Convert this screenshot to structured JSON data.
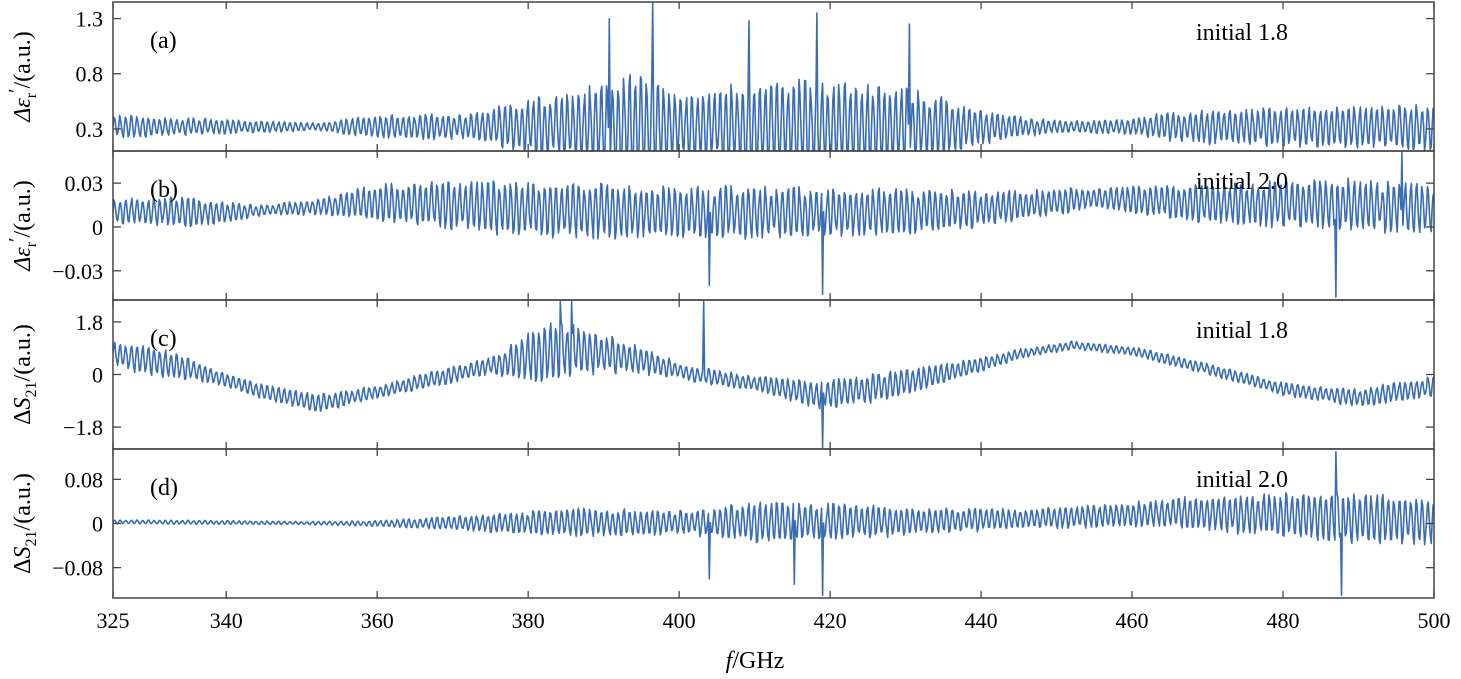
{
  "chart_data": [
    {
      "id": "a",
      "type": "line",
      "panel_label": "(a)",
      "annotation": "initial 1.8",
      "ylabel_prefix": "Δε",
      "ylabel_sub": "r",
      "ylabel_prime": "′",
      "ylabel_unit": "/(a.u.)",
      "ylim": [
        0.1,
        1.45
      ],
      "yticks": [
        0.3,
        0.8,
        1.3
      ],
      "ytick_labels": [
        "0.3",
        "0.8",
        "1.3"
      ],
      "color": "#3a6db3",
      "envelope": {
        "base": 0.32,
        "amp_x": [
          325,
          345,
          352,
          358,
          366,
          372,
          380,
          386,
          390,
          395,
          400,
          405,
          410,
          415,
          420,
          425,
          430,
          435,
          440,
          445,
          452,
          460,
          465,
          470,
          480,
          490,
          500
        ],
        "amp_y": [
          0.12,
          0.06,
          0.04,
          0.1,
          0.14,
          0.12,
          0.3,
          0.35,
          0.48,
          0.55,
          0.32,
          0.4,
          0.45,
          0.48,
          0.45,
          0.48,
          0.4,
          0.3,
          0.18,
          0.1,
          0.06,
          0.08,
          0.15,
          0.18,
          0.2,
          0.22,
          0.25
        ]
      },
      "spikes": [
        {
          "x": 396.5,
          "y": 1.45
        },
        {
          "x": 390.8,
          "y": 1.3
        },
        {
          "x": 418.2,
          "y": 1.35
        },
        {
          "x": 409.3,
          "y": 1.28
        },
        {
          "x": 430.5,
          "y": 1.25
        }
      ]
    },
    {
      "id": "b",
      "type": "line",
      "panel_label": "(b)",
      "annotation": "initial 2.0",
      "ylabel_prefix": "Δε",
      "ylabel_sub": "r",
      "ylabel_prime": "′",
      "ylabel_unit": "/(a.u.)",
      "ylim": [
        -0.05,
        0.052
      ],
      "yticks": [
        -0.03,
        0,
        0.03
      ],
      "ytick_labels": [
        "−0.03",
        "0",
        "0.03"
      ],
      "color": "#3a6db3",
      "envelope": {
        "base_x": [
          325,
          340,
          350,
          360,
          380,
          400,
          420,
          440,
          455,
          470,
          490,
          500
        ],
        "base_y": [
          0.011,
          0.01,
          0.013,
          0.017,
          0.012,
          0.01,
          0.01,
          0.012,
          0.02,
          0.016,
          0.015,
          0.012
        ],
        "amp_x": [
          325,
          335,
          345,
          352,
          360,
          370,
          385,
          400,
          415,
          430,
          445,
          455,
          470,
          485,
          500
        ],
        "amp_y": [
          0.01,
          0.012,
          0.004,
          0.006,
          0.015,
          0.02,
          0.022,
          0.02,
          0.02,
          0.018,
          0.012,
          0.008,
          0.015,
          0.02,
          0.02
        ]
      },
      "spikes": [
        {
          "x": 487,
          "y": -0.048
        },
        {
          "x": 419,
          "y": -0.046
        },
        {
          "x": 404,
          "y": -0.04
        },
        {
          "x": 495.8,
          "y": 0.051
        }
      ]
    },
    {
      "id": "c",
      "type": "line",
      "panel_label": "(c)",
      "annotation": "initial 1.8",
      "ylabel_prefix": "ΔS",
      "ylabel_sub": "21",
      "ylabel_prime": "",
      "ylabel_unit": "/(a.u.)",
      "ylim": [
        -2.55,
        2.55
      ],
      "yticks": [
        -1.8,
        0,
        1.8
      ],
      "ytick_labels": [
        "−1.8",
        "0",
        "1.8"
      ],
      "color": "#3a6db3",
      "envelope": {
        "base_x": [
          325,
          335,
          345,
          352,
          360,
          370,
          380,
          385,
          395,
          402,
          410,
          418,
          425,
          435,
          445,
          452,
          460,
          470,
          480,
          490,
          500
        ],
        "base_y": [
          0.7,
          0.2,
          -0.6,
          -1.0,
          -0.6,
          0.0,
          0.6,
          0.9,
          0.5,
          0.0,
          -0.3,
          -0.7,
          -0.5,
          0.0,
          0.7,
          1.0,
          0.8,
          0.2,
          -0.5,
          -0.8,
          -0.4
        ],
        "amp_x": [
          325,
          330,
          340,
          352,
          360,
          375,
          383,
          390,
          400,
          410,
          420,
          430,
          445,
          455,
          465,
          480,
          490,
          500
        ],
        "amp_y": [
          0.5,
          0.6,
          0.25,
          0.35,
          0.25,
          0.35,
          1.2,
          0.8,
          0.3,
          0.3,
          0.6,
          0.5,
          0.2,
          0.15,
          0.2,
          0.25,
          0.35,
          0.4
        ]
      },
      "spikes": [
        {
          "x": 403.2,
          "y": 2.5
        },
        {
          "x": 384.2,
          "y": 2.5
        },
        {
          "x": 385.8,
          "y": 2.5
        },
        {
          "x": 419.0,
          "y": -2.5
        }
      ]
    },
    {
      "id": "d",
      "type": "line",
      "panel_label": "(d)",
      "annotation": "initial 2.0",
      "ylabel_prefix": "ΔS",
      "ylabel_sub": "21",
      "ylabel_prime": "",
      "ylabel_unit": "/(a.u.)",
      "ylim": [
        -0.135,
        0.135
      ],
      "yticks": [
        -0.08,
        0,
        0.08
      ],
      "ytick_labels": [
        "−0.08",
        "0",
        "0.08"
      ],
      "color": "#3a6db3",
      "envelope": {
        "base_x": [
          325,
          360,
          400,
          430,
          450,
          465,
          480,
          500
        ],
        "base_y": [
          0.003,
          0.0,
          0.002,
          0.004,
          0.01,
          0.02,
          0.015,
          0.005
        ],
        "amp_x": [
          325,
          340,
          350,
          360,
          370,
          385,
          400,
          410,
          420,
          430,
          445,
          460,
          480,
          490,
          500
        ],
        "amp_y": [
          0.004,
          0.004,
          0.003,
          0.006,
          0.014,
          0.03,
          0.025,
          0.04,
          0.04,
          0.03,
          0.02,
          0.025,
          0.045,
          0.055,
          0.05
        ]
      },
      "spikes": [
        {
          "x": 487,
          "y": 0.13
        },
        {
          "x": 487.8,
          "y": -0.13
        },
        {
          "x": 415.3,
          "y": -0.11
        },
        {
          "x": 419,
          "y": -0.13
        },
        {
          "x": 404,
          "y": -0.1
        }
      ]
    }
  ],
  "x_axis": {
    "xlim": [
      325,
      500
    ],
    "ticks": [
      325,
      340,
      360,
      380,
      400,
      420,
      440,
      460,
      480,
      500
    ],
    "tick_labels": [
      "325",
      "340",
      "360",
      "380",
      "400",
      "420",
      "440",
      "460",
      "480",
      "500"
    ],
    "label_italic": "f",
    "label_rest": "/GHz"
  }
}
